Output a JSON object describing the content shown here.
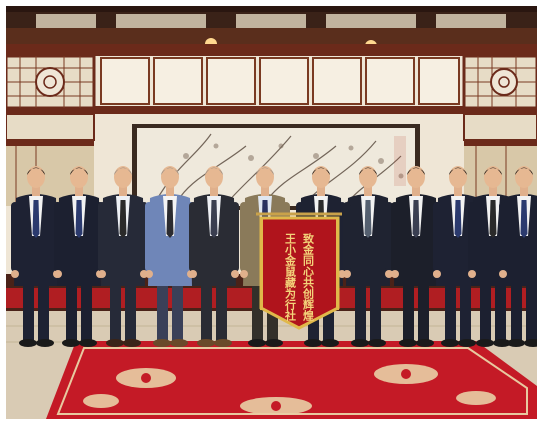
{
  "scene": {
    "banner": {
      "line_1": "王小金鼠藏为行社",
      "line_2": "致金同心共创辉煌",
      "color": "#b0141c",
      "fringe_color": "#e0b84a"
    },
    "people_count": 13,
    "carpet_color": "#c41a26",
    "wall_color": "#efe6d6"
  }
}
